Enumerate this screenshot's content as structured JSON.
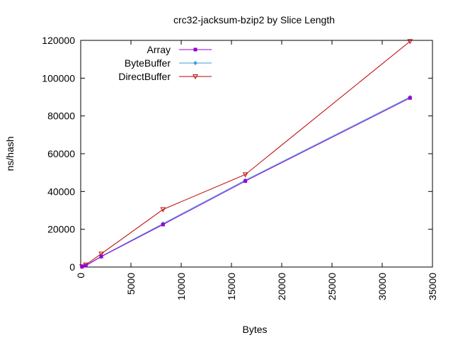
{
  "chart_data": {
    "type": "line",
    "title": "crc32-jacksum-bzip2 by Slice Length",
    "xlabel": "Bytes",
    "ylabel": "ns/hash",
    "xlim": [
      0,
      35000
    ],
    "ylim": [
      0,
      120000
    ],
    "x_ticks": [
      0,
      5000,
      10000,
      15000,
      20000,
      25000,
      30000,
      35000
    ],
    "y_ticks": [
      0,
      20000,
      40000,
      60000,
      80000,
      100000,
      120000
    ],
    "grid": false,
    "legend_position": "top-left",
    "x": [
      128,
      512,
      2048,
      8192,
      16384,
      32768
    ],
    "series": [
      {
        "name": "Array",
        "color": "#9400d3",
        "marker": "square",
        "values": [
          200,
          700,
          5500,
          22500,
          45500,
          89500
        ]
      },
      {
        "name": "ByteBuffer",
        "color": "#3a9ed6",
        "marker": "diamond",
        "values": [
          250,
          800,
          5700,
          23000,
          46000,
          90000
        ]
      },
      {
        "name": "DirectBuffer",
        "color": "#c00000",
        "marker": "triangle-down",
        "values": [
          300,
          1200,
          7000,
          30500,
          49000,
          119500
        ]
      }
    ]
  }
}
